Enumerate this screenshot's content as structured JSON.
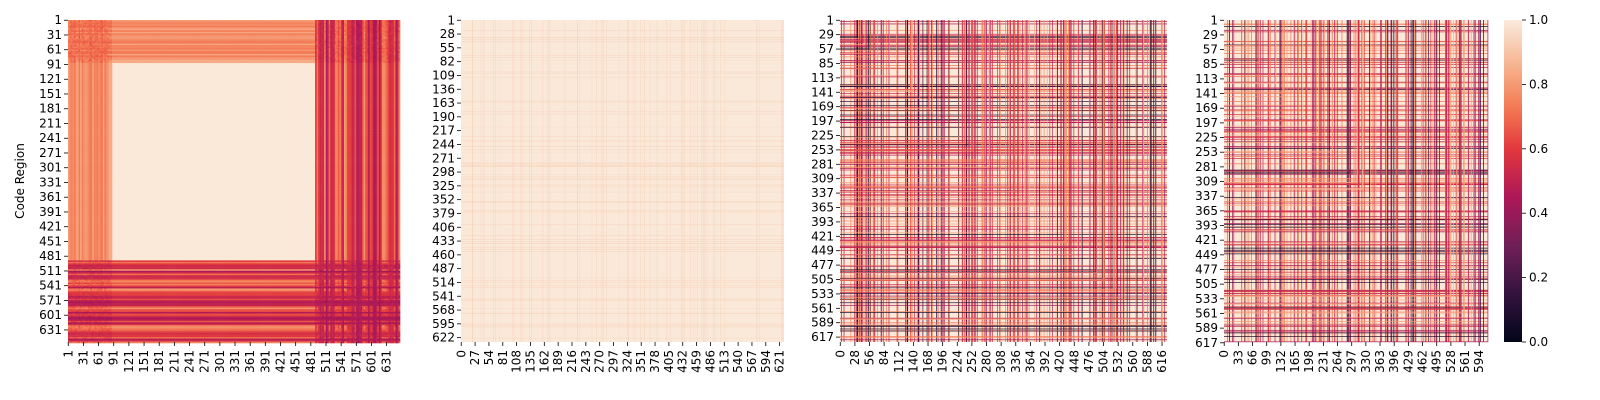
{
  "chart_data": [
    {
      "type": "heatmap",
      "ylabel": "Code Region",
      "xlabel": "",
      "y_ticks": [
        "1",
        "31",
        "61",
        "91",
        "121",
        "151",
        "181",
        "211",
        "241",
        "271",
        "301",
        "331",
        "361",
        "391",
        "421",
        "451",
        "481",
        "511",
        "541",
        "571",
        "601",
        "631"
      ],
      "x_ticks": [
        "1",
        "31",
        "61",
        "91",
        "121",
        "151",
        "181",
        "211",
        "241",
        "271",
        "301",
        "331",
        "361",
        "391",
        "421",
        "451",
        "481",
        "511",
        "541",
        "571",
        "601",
        "631"
      ],
      "n": 655,
      "pattern": "block",
      "block_range": [
        86,
        487
      ]
    },
    {
      "type": "heatmap",
      "ylabel": "",
      "xlabel": "",
      "y_ticks": [
        "1",
        "28",
        "55",
        "82",
        "109",
        "136",
        "163",
        "190",
        "217",
        "244",
        "271",
        "298",
        "325",
        "352",
        "379",
        "406",
        "433",
        "460",
        "487",
        "514",
        "541",
        "568",
        "595",
        "622"
      ],
      "x_ticks": [
        "0",
        "27",
        "54",
        "81",
        "108",
        "135",
        "162",
        "189",
        "216",
        "243",
        "270",
        "297",
        "324",
        "351",
        "378",
        "405",
        "432",
        "459",
        "486",
        "513",
        "540",
        "567",
        "594",
        "621"
      ],
      "n": 630,
      "pattern": "uniform"
    },
    {
      "type": "heatmap",
      "ylabel": "",
      "xlabel": "",
      "y_ticks": [
        "1",
        "29",
        "57",
        "85",
        "113",
        "141",
        "169",
        "197",
        "225",
        "253",
        "281",
        "309",
        "337",
        "365",
        "393",
        "421",
        "449",
        "477",
        "505",
        "533",
        "561",
        "589",
        "617"
      ],
      "x_ticks": [
        "0",
        "28",
        "56",
        "84",
        "112",
        "140",
        "168",
        "196",
        "224",
        "252",
        "280",
        "308",
        "336",
        "364",
        "392",
        "420",
        "448",
        "476",
        "504",
        "532",
        "560",
        "588",
        "616"
      ],
      "n": 626,
      "pattern": "lines"
    },
    {
      "type": "heatmap",
      "ylabel": "",
      "xlabel": "",
      "y_ticks": [
        "1",
        "29",
        "57",
        "85",
        "113",
        "141",
        "169",
        "197",
        "225",
        "253",
        "281",
        "309",
        "337",
        "365",
        "393",
        "421",
        "449",
        "477",
        "505",
        "533",
        "561",
        "589",
        "617"
      ],
      "x_ticks": [
        "0",
        "33",
        "66",
        "99",
        "132",
        "165",
        "198",
        "231",
        "264",
        "297",
        "330",
        "363",
        "396",
        "429",
        "462",
        "495",
        "528",
        "561",
        "594"
      ],
      "n": 615,
      "pattern": "lines"
    }
  ],
  "colorbar": {
    "min": 0.0,
    "max": 1.0,
    "ticks": [
      "0.0",
      "0.2",
      "0.4",
      "0.6",
      "0.8",
      "1.0"
    ],
    "colormap": "rocket"
  }
}
